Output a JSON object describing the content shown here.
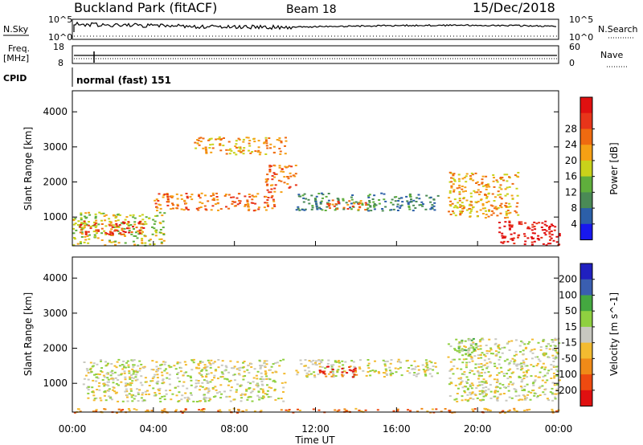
{
  "header": {
    "title": "Buckland Park (fitACF)",
    "beam": "Beam 18",
    "date": "15/Dec/2018"
  },
  "panels": {
    "nsky_label": "N.Sky",
    "nsky_ticks": [
      "10^5",
      "10^0"
    ],
    "nsearch_label": "N.Search",
    "nsearch_ticks": [
      "10^5",
      "10^0"
    ],
    "freq_label_1": "Freq.",
    "freq_label_2": "[MHz]",
    "freq_ticks": [
      "18",
      "8"
    ],
    "nave_label": "Nave",
    "nave_ticks": [
      "60",
      "0"
    ],
    "cpid_label": "CPID",
    "cpid_text": "normal (fast) 151"
  },
  "axes": {
    "xlabel": "Time UT",
    "ylabel": "Slant Range [km]",
    "xticks": [
      "00:00",
      "04:00",
      "08:00",
      "12:00",
      "16:00",
      "20:00",
      "00:00"
    ],
    "yticks": [
      "1000",
      "2000",
      "3000",
      "4000"
    ]
  },
  "colors": {
    "power_scale": [
      "#1818ee",
      "#2c5fa8",
      "#4a8a55",
      "#5fae3c",
      "#c9d21a",
      "#f5a014",
      "#ef6a10",
      "#e8351a",
      "#e01010"
    ],
    "velocity_scale": [
      "#e01010",
      "#ee4a10",
      "#f08a18",
      "#f3bb30",
      "#c8c8c0",
      "#8fd040",
      "#44a840",
      "#3a5eb0",
      "#2020c0"
    ],
    "gray": "#c8c8c0",
    "trace": "#000000"
  },
  "chart_data": [
    {
      "type": "heatmap",
      "title": "",
      "xlabel": "Time UT",
      "ylabel": "Slant Range [km]",
      "xlim": [
        0,
        24
      ],
      "ylim": [
        180,
        4600
      ],
      "colorbar_label": "Power [dB]",
      "colorbar_ticks": [
        "4",
        "8",
        "12",
        "16",
        "20",
        "24",
        "28"
      ],
      "regions": [
        {
          "t": [
            0.0,
            4.5
          ],
          "r": [
            200,
            1150
          ],
          "level": 4
        },
        {
          "t": [
            0.3,
            3.5
          ],
          "r": [
            500,
            900
          ],
          "level": 7
        },
        {
          "t": [
            4.0,
            10.0
          ],
          "r": [
            1200,
            1700
          ],
          "level": 6
        },
        {
          "t": [
            6.0,
            10.5
          ],
          "r": [
            2800,
            3300
          ],
          "level": 5
        },
        {
          "t": [
            9.5,
            11.0
          ],
          "r": [
            1700,
            2500
          ],
          "level": 6
        },
        {
          "t": [
            11.0,
            18.0
          ],
          "r": [
            1200,
            1700
          ],
          "level": 2
        },
        {
          "t": [
            12.5,
            14.5
          ],
          "r": [
            1200,
            1500
          ],
          "level": 6
        },
        {
          "t": [
            18.5,
            22.0
          ],
          "r": [
            1000,
            2300
          ],
          "level": 5
        },
        {
          "t": [
            21.0,
            24.0
          ],
          "r": [
            200,
            900
          ],
          "level": 8
        }
      ]
    },
    {
      "type": "heatmap",
      "title": "",
      "xlabel": "Time UT",
      "ylabel": "Slant Range [km]",
      "xlim": [
        0,
        24
      ],
      "ylim": [
        180,
        4600
      ],
      "colorbar_label": "Velocity [m s^-1]",
      "colorbar_ticks": [
        "200",
        "100",
        "50",
        "15",
        "-15",
        "-50",
        "-100",
        "-200"
      ],
      "regions": [
        {
          "t": [
            0.0,
            24.0
          ],
          "r": [
            180,
            300
          ],
          "level": 2
        },
        {
          "t": [
            0.5,
            10.5
          ],
          "r": [
            500,
            1700
          ],
          "level": 4
        },
        {
          "t": [
            11.0,
            18.0
          ],
          "r": [
            1200,
            1700
          ],
          "level": 4
        },
        {
          "t": [
            12.0,
            14.0
          ],
          "r": [
            1200,
            1500
          ],
          "level": 1
        },
        {
          "t": [
            18.5,
            24.0
          ],
          "r": [
            500,
            2300
          ],
          "level": 4
        },
        {
          "t": [
            18.8,
            20.0
          ],
          "r": [
            1800,
            2300
          ],
          "level": 5
        }
      ]
    }
  ]
}
